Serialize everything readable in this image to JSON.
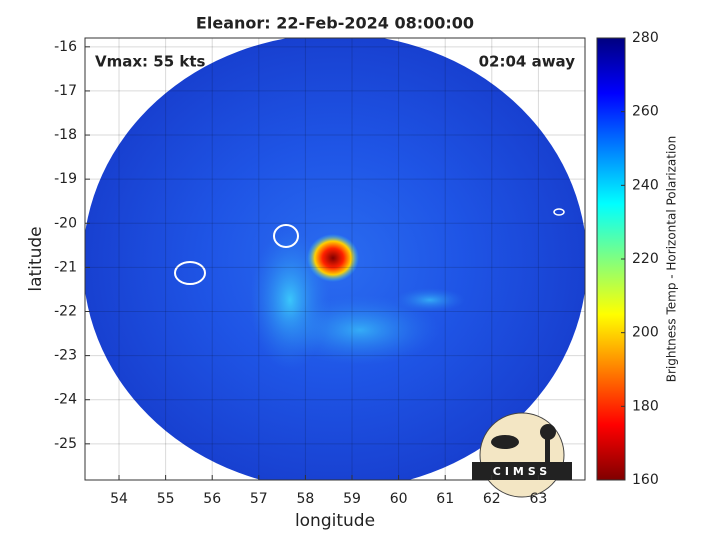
{
  "chart_data": {
    "type": "heatmap",
    "title": "Eleanor: 22-Feb-2024 08:00:00",
    "xlabel": "longitude",
    "ylabel": "latitude",
    "annotations": [
      "Vmax: 55 kts",
      "02:04 away"
    ],
    "xlim": [
      53.27,
      64.0
    ],
    "ylim": [
      -25.82,
      -15.8
    ],
    "xticks": [
      54,
      55,
      56,
      57,
      58,
      59,
      60,
      61,
      62,
      63
    ],
    "yticks": [
      -16,
      -17,
      -18,
      -19,
      -20,
      -21,
      -22,
      -23,
      -24,
      -25
    ],
    "grid": true,
    "colorbar": {
      "label": "Brightness Temp - Horizontal Polarization",
      "lim": [
        160,
        280
      ],
      "ticks": [
        160,
        180,
        200,
        220,
        240,
        260,
        280
      ],
      "colormap": "jet"
    },
    "logo": "CIMSS"
  }
}
